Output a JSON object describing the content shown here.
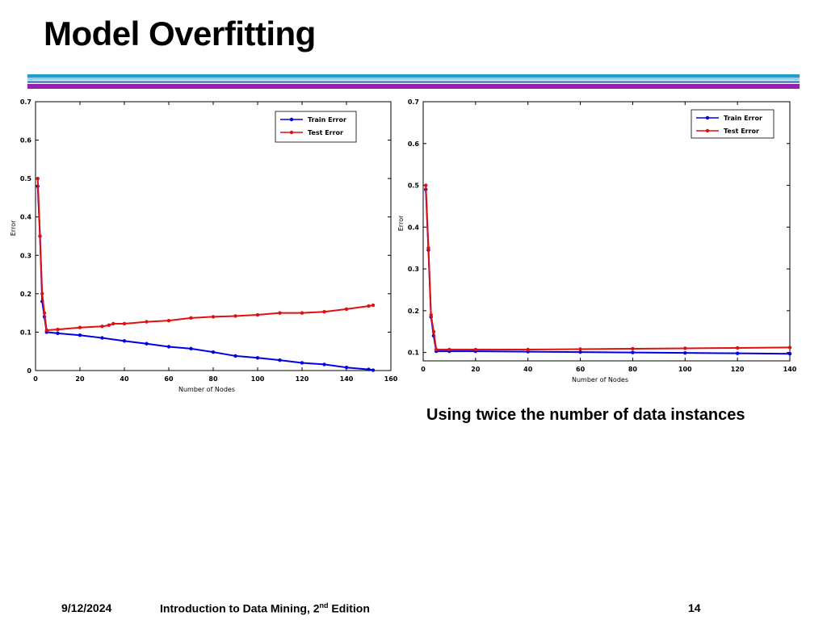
{
  "slide": {
    "title": "Model Overfitting",
    "caption": "Using twice the number of data instances"
  },
  "footer": {
    "date": "9/12/2024",
    "course_prefix": "Introduction to Data Mining, 2",
    "course_sup": "nd",
    "course_suffix": " Edition",
    "page": "14"
  },
  "colors": {
    "train": "#0000e6",
    "test": "#e01010",
    "bar_blue": "#1e9fcf",
    "bar_purple": "#9a1fb0"
  },
  "chart_data": [
    {
      "type": "line",
      "title": "",
      "xlabel": "Number of Nodes",
      "ylabel": "Error",
      "xlim": [
        0,
        160
      ],
      "ylim": [
        0,
        0.7
      ],
      "xticks": [
        0,
        20,
        40,
        60,
        80,
        100,
        120,
        140,
        160
      ],
      "yticks": [
        0,
        0.1,
        0.2,
        0.3,
        0.4,
        0.5,
        0.6,
        0.7
      ],
      "legend": "top-right",
      "grid": false,
      "series": [
        {
          "name": "Train Error",
          "color": "#0000e6",
          "x": [
            1,
            2,
            3,
            4,
            5,
            10,
            20,
            30,
            40,
            50,
            60,
            70,
            80,
            90,
            100,
            110,
            120,
            130,
            140,
            150,
            152
          ],
          "values": [
            0.48,
            0.35,
            0.18,
            0.14,
            0.1,
            0.097,
            0.092,
            0.085,
            0.077,
            0.07,
            0.062,
            0.057,
            0.048,
            0.038,
            0.033,
            0.027,
            0.02,
            0.016,
            0.008,
            0.003,
            0.001
          ]
        },
        {
          "name": "Test Error",
          "color": "#e01010",
          "x": [
            1,
            2,
            3,
            4,
            5,
            10,
            20,
            30,
            33,
            35,
            40,
            50,
            60,
            70,
            80,
            90,
            100,
            110,
            120,
            130,
            140,
            150,
            152
          ],
          "values": [
            0.5,
            0.35,
            0.2,
            0.15,
            0.105,
            0.107,
            0.112,
            0.115,
            0.118,
            0.122,
            0.122,
            0.127,
            0.13,
            0.137,
            0.14,
            0.142,
            0.145,
            0.15,
            0.15,
            0.153,
            0.16,
            0.168,
            0.17
          ]
        }
      ]
    },
    {
      "type": "line",
      "title": "",
      "xlabel": "Number of Nodes",
      "ylabel": "Error",
      "xlim": [
        0,
        140
      ],
      "ylim": [
        0.08,
        0.7
      ],
      "xticks": [
        0,
        20,
        40,
        60,
        80,
        100,
        120,
        140
      ],
      "yticks": [
        0.1,
        0.2,
        0.3,
        0.4,
        0.5,
        0.6,
        0.7
      ],
      "legend": "top-right",
      "grid": false,
      "series": [
        {
          "name": "Train Error",
          "color": "#0000e6",
          "x": [
            1,
            2,
            3,
            4,
            5,
            10,
            20,
            40,
            60,
            80,
            100,
            120,
            140
          ],
          "values": [
            0.49,
            0.345,
            0.185,
            0.14,
            0.103,
            0.103,
            0.103,
            0.102,
            0.101,
            0.1,
            0.099,
            0.098,
            0.097
          ]
        },
        {
          "name": "Test Error",
          "color": "#e01010",
          "x": [
            1,
            2,
            3,
            4,
            5,
            10,
            20,
            40,
            60,
            80,
            100,
            120,
            140
          ],
          "values": [
            0.5,
            0.35,
            0.19,
            0.15,
            0.107,
            0.107,
            0.107,
            0.107,
            0.108,
            0.109,
            0.11,
            0.111,
            0.112
          ]
        }
      ]
    }
  ]
}
